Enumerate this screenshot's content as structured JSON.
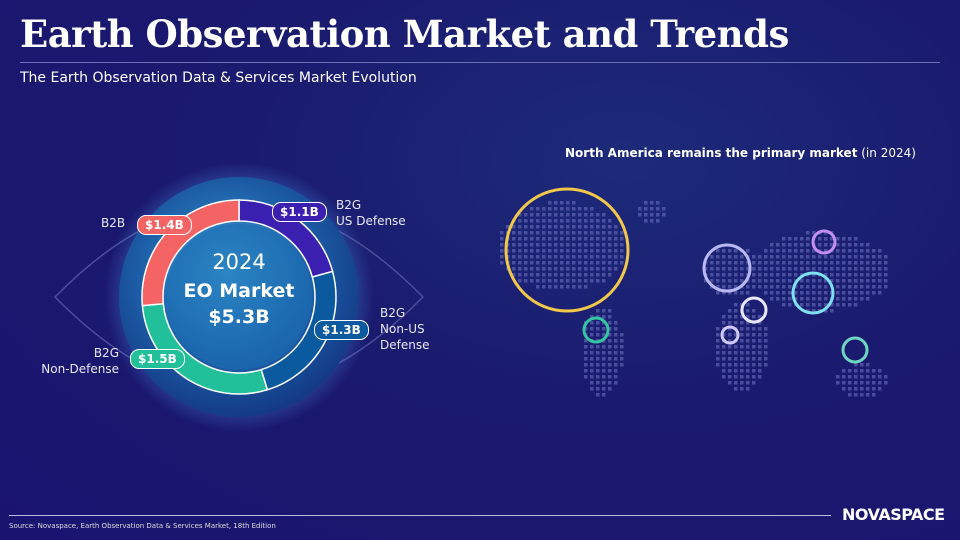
{
  "header": {
    "title": "Earth Observation Market and Trends",
    "subtitle": "The Earth Observation Data & Services Market Evolution"
  },
  "map": {
    "title_bold": "North America remains the primary market",
    "title_suffix": " (in 2024)"
  },
  "chart_data": {
    "type": "pie",
    "variant": "donut",
    "center": {
      "year": "2024",
      "label": "EO Market",
      "total": "$5.3B"
    },
    "categories": [
      "B2G US Defense",
      "B2G Non-US Defense",
      "B2G Non-Defense",
      "B2B"
    ],
    "values": [
      1.1,
      1.3,
      1.5,
      1.4
    ],
    "value_labels": [
      "$1.1B",
      "$1.3B",
      "$1.5B",
      "$1.4B"
    ],
    "label_lines": [
      [
        "B2G",
        "US Defense"
      ],
      [
        "B2G",
        "Non-US",
        "Defense"
      ],
      [
        "B2G",
        "Non-Defense"
      ],
      [
        "B2B"
      ]
    ],
    "colors": [
      "#3a1fb0",
      "#0b5aa0",
      "#22c09a",
      "#f56464"
    ],
    "unit": "USD billions"
  },
  "footer": {
    "source": "Source: Novaspace, Earth Observation Data & Services Market, 18th Edition",
    "logo": "NOVASPACE"
  }
}
